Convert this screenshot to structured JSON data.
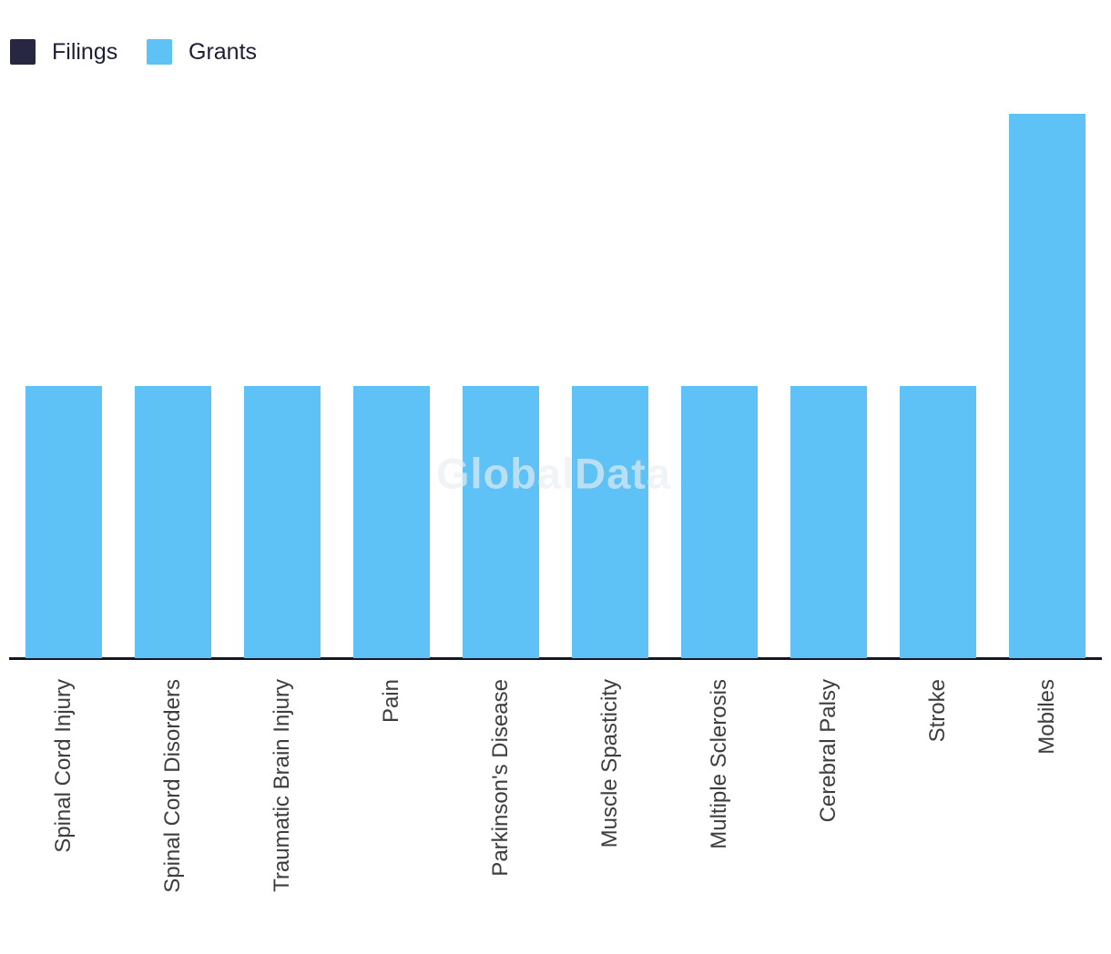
{
  "chart_data": {
    "type": "bar",
    "categories": [
      "Spinal Cord Injury",
      "Spinal Cord Disorders",
      "Traumatic Brain Injury",
      "Pain",
      "Parkinson's Disease",
      "Muscle Spasticity",
      "Multiple Sclerosis",
      "Cerebral Palsy",
      "Stroke",
      "Mobiles"
    ],
    "series": [
      {
        "name": "Filings",
        "color": "#272742",
        "values": [
          0,
          0,
          0,
          0,
          0,
          0,
          0,
          0,
          0,
          0
        ]
      },
      {
        "name": "Grants",
        "color": "#5FC2F7",
        "values": [
          1,
          1,
          1,
          1,
          1,
          1,
          1,
          1,
          1,
          2
        ]
      }
    ],
    "title": "",
    "xlabel": "",
    "ylabel": "",
    "ylim": [
      0,
      2
    ],
    "grid": false,
    "legend_position": "top-left",
    "x_label_rotation": -90,
    "axis_line_color": "#16162b",
    "annotations": [
      "GlobalData"
    ]
  }
}
